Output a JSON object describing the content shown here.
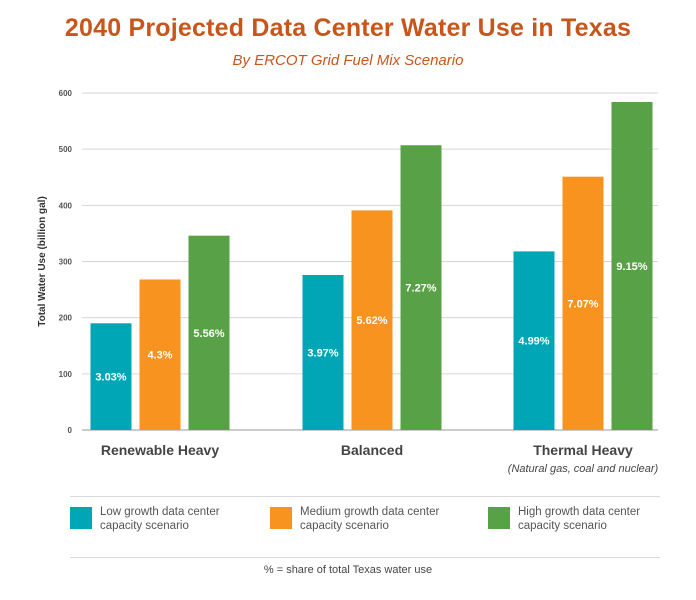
{
  "chart_data": {
    "type": "bar",
    "title": "2040 Projected Data Center Water Use in Texas",
    "subtitle": "By ERCOT Grid Fuel Mix Scenario",
    "ylabel": "Total Water Use (billion gal)",
    "ylim": [
      0,
      600
    ],
    "yticks": [
      "0",
      "100",
      "200",
      "300",
      "400",
      "500",
      "600"
    ],
    "grid": true,
    "categories": [
      "Renewable Heavy",
      "Balanced",
      "Thermal Heavy"
    ],
    "category_notes": [
      "",
      "",
      "(Natural gas, coal and nuclear)"
    ],
    "series": [
      {
        "name": "Low growth data center capacity scenario",
        "color": "#00a6b6",
        "values": [
          190,
          276,
          318
        ],
        "labels": [
          "3.03%",
          "3.97%",
          "4.99%"
        ]
      },
      {
        "name": "Medium growth data center capacity scenario",
        "color": "#f7931e",
        "values": [
          268,
          391,
          451
        ],
        "labels": [
          "4.3%",
          "5.62%",
          "7.07%"
        ]
      },
      {
        "name": "High growth data center capacity scenario",
        "color": "#58a146",
        "values": [
          346,
          507,
          584
        ],
        "labels": [
          "5.56%",
          "7.27%",
          "9.15%"
        ]
      }
    ],
    "legend_position": "bottom",
    "footnote": "% = share of total Texas water use"
  }
}
